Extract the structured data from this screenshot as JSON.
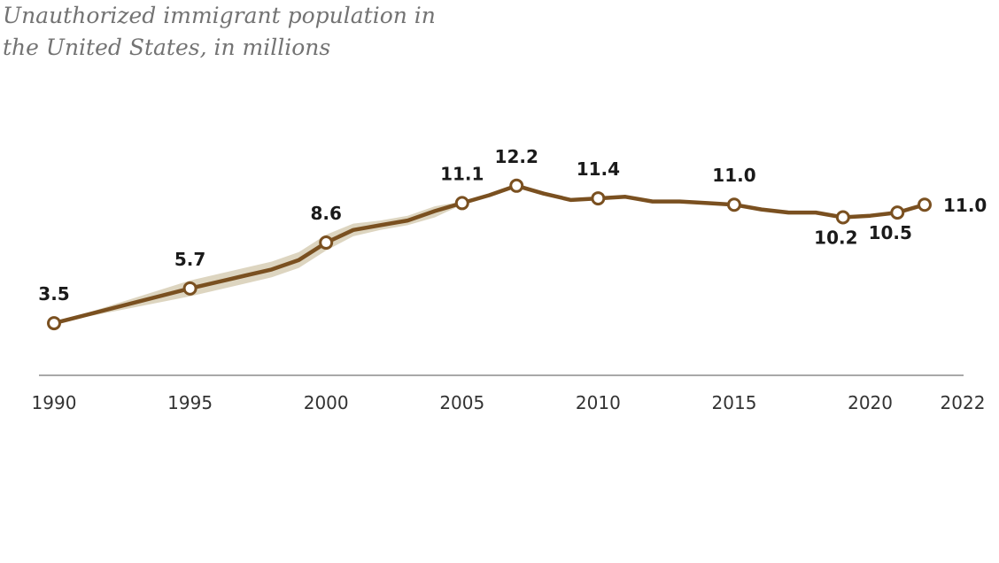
{
  "chart_data": {
    "type": "line",
    "title_lines": [
      "Unauthorized immigrant population in",
      "the United States, in millions"
    ],
    "xlabel": "",
    "ylabel": "",
    "ylim": [
      0,
      12.8
    ],
    "x_ticks": [
      {
        "label": "1990",
        "value": 1990
      },
      {
        "label": "1995",
        "value": 1995
      },
      {
        "label": "2000",
        "value": 2000
      },
      {
        "label": "2005",
        "value": 2005
      },
      {
        "label": "2010",
        "value": 2010
      },
      {
        "label": "2015",
        "value": 2015
      },
      {
        "label": "2020",
        "value": 2020
      },
      {
        "label": "2022",
        "value": 2022
      }
    ],
    "series": [
      {
        "name": "Unauthorized immigrant population",
        "color": "#7a5020",
        "x": [
          1990,
          1995,
          1996,
          1997,
          1998,
          1999,
          2000,
          2001,
          2002,
          2003,
          2004,
          2005,
          2006,
          2007,
          2008,
          2009,
          2010,
          2011,
          2012,
          2013,
          2014,
          2015,
          2016,
          2017,
          2018,
          2019,
          2020,
          2021,
          2022
        ],
        "values": [
          3.5,
          5.7,
          6.1,
          6.5,
          6.9,
          7.5,
          8.6,
          9.4,
          9.7,
          10.0,
          10.6,
          11.1,
          11.6,
          12.2,
          11.7,
          11.3,
          11.4,
          11.5,
          11.2,
          11.2,
          11.1,
          11.0,
          10.7,
          10.5,
          10.5,
          10.2,
          10.3,
          10.5,
          11.0
        ]
      }
    ],
    "uncertainty_band": {
      "color": "#ddd5c0",
      "x": [
        1990,
        1995,
        1996,
        1997,
        1998,
        1999,
        2000,
        2001,
        2002,
        2003,
        2004,
        2005
      ],
      "lower": [
        3.5,
        5.2,
        5.6,
        6.0,
        6.4,
        7.0,
        8.1,
        9.0,
        9.4,
        9.7,
        10.2,
        11.0
      ],
      "upper": [
        3.5,
        6.2,
        6.6,
        7.0,
        7.4,
        8.0,
        9.1,
        9.8,
        10.0,
        10.3,
        10.9,
        11.2
      ]
    },
    "data_labels": [
      {
        "x": 1990,
        "value": 3.5,
        "text": "3.5",
        "position": "above"
      },
      {
        "x": 1995,
        "value": 5.7,
        "text": "5.7",
        "position": "above"
      },
      {
        "x": 2000,
        "value": 8.6,
        "text": "8.6",
        "position": "above"
      },
      {
        "x": 2005,
        "value": 11.1,
        "text": "11.1",
        "position": "above"
      },
      {
        "x": 2007,
        "value": 12.2,
        "text": "12.2",
        "position": "above"
      },
      {
        "x": 2010,
        "value": 11.4,
        "text": "11.4",
        "position": "above"
      },
      {
        "x": 2015,
        "value": 11.0,
        "text": "11.0",
        "position": "above"
      },
      {
        "x": 2019,
        "value": 10.2,
        "text": "10.2",
        "position": "below"
      },
      {
        "x": 2021,
        "value": 10.5,
        "text": "10.5",
        "position": "below"
      },
      {
        "x": 2022,
        "value": 11.0,
        "text": "11.0",
        "position": "right"
      }
    ],
    "grid": false,
    "legend": "none"
  }
}
